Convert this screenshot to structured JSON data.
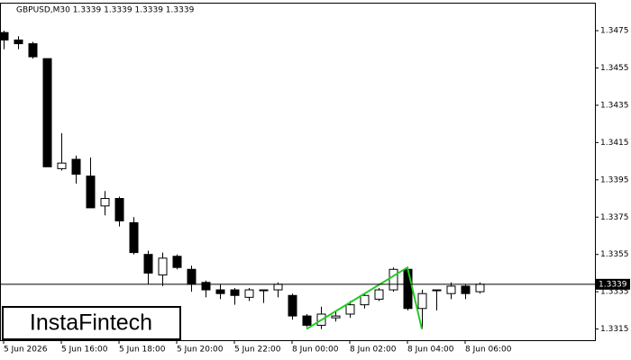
{
  "chart_data": {
    "type": "candlestick",
    "title": "GBPUSD,M30  1.3339 1.3339 1.3339 1.3339",
    "categories": [
      "5 Jun 2026",
      null,
      null,
      null,
      "5 Jun 16:00",
      null,
      null,
      null,
      "5 Jun 18:00",
      null,
      null,
      null,
      "5 Jun 20:00",
      null,
      null,
      null,
      "5 Jun 22:00",
      null,
      null,
      null,
      "8 Jun 00:00",
      null,
      null,
      null,
      "8 Jun 02:00",
      null,
      null,
      null,
      "8 Jun 04:00",
      null,
      null,
      null,
      "8 Jun 06:00",
      null
    ],
    "open": [
      1.3474,
      1.347,
      1.3468,
      1.346,
      1.3401,
      1.3406,
      1.3397,
      1.3381,
      1.3385,
      1.3372,
      1.3355,
      1.3344,
      1.3354,
      1.3347,
      1.334,
      1.3336,
      1.3336,
      1.3332,
      1.3336,
      1.3336,
      1.3333,
      1.3322,
      1.3317,
      1.3321,
      1.3323,
      1.3328,
      1.3331,
      1.3336,
      1.3347,
      1.3326,
      1.3336,
      1.3334,
      1.3338,
      1.3335
    ],
    "high": [
      1.3475,
      1.3472,
      1.3469,
      1.346,
      1.342,
      1.3408,
      1.3407,
      1.3389,
      1.3386,
      1.3375,
      1.3357,
      1.3356,
      1.3355,
      1.3349,
      1.3341,
      1.3339,
      1.3337,
      1.3337,
      1.3336,
      1.334,
      1.3334,
      1.3323,
      1.3327,
      1.3325,
      1.333,
      1.3334,
      1.3337,
      1.3348,
      1.3348,
      1.3336,
      1.3336,
      1.334,
      1.3339,
      1.334
    ],
    "low": [
      1.3465,
      1.3465,
      1.346,
      1.3402,
      1.34,
      1.3393,
      1.338,
      1.3376,
      1.337,
      1.3355,
      1.3339,
      1.3338,
      1.3347,
      1.3335,
      1.3332,
      1.3331,
      1.3328,
      1.333,
      1.3329,
      1.3332,
      1.332,
      1.3316,
      1.3315,
      1.3319,
      1.3321,
      1.3326,
      1.333,
      1.3335,
      1.3325,
      1.3315,
      1.3325,
      1.3331,
      1.3331,
      1.3334
    ],
    "close": [
      1.347,
      1.3468,
      1.3461,
      1.3402,
      1.3404,
      1.3398,
      1.338,
      1.3385,
      1.3373,
      1.3356,
      1.3345,
      1.3353,
      1.3348,
      1.3339,
      1.3336,
      1.3334,
      1.3333,
      1.3336,
      1.3336,
      1.3339,
      1.3322,
      1.3317,
      1.3323,
      1.3322,
      1.3328,
      1.3333,
      1.3336,
      1.3347,
      1.3326,
      1.3334,
      1.3336,
      1.3338,
      1.3334,
      1.3339
    ],
    "up_color": "#ffffff",
    "down_color": "#000000",
    "pattern": {
      "color": "#22cc22",
      "x": [
        21,
        28,
        29
      ],
      "values": [
        1.3315,
        1.3348,
        1.3315
      ]
    },
    "last_price": 1.3339,
    "ylim": [
      1.3309,
      1.349
    ],
    "yticks": [
      1.3315,
      1.3335,
      1.3355,
      1.3375,
      1.3395,
      1.3415,
      1.3435,
      1.3455,
      1.3475
    ],
    "watermark": "InstaFintech"
  }
}
